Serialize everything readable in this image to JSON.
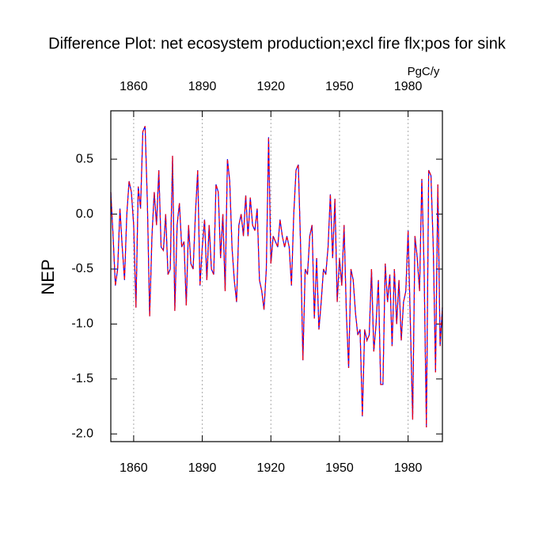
{
  "chart_data": {
    "type": "line",
    "title": "Difference Plot: net ecosystem production;excl fire flx;pos for sink",
    "units_label": "PgC/y",
    "y_label": "NEP",
    "x": [
      1850,
      1851,
      1852,
      1853,
      1854,
      1855,
      1856,
      1857,
      1858,
      1859,
      1860,
      1861,
      1862,
      1863,
      1864,
      1865,
      1866,
      1867,
      1868,
      1869,
      1870,
      1871,
      1872,
      1873,
      1874,
      1875,
      1876,
      1877,
      1878,
      1879,
      1880,
      1881,
      1882,
      1883,
      1884,
      1885,
      1886,
      1887,
      1888,
      1889,
      1890,
      1891,
      1892,
      1893,
      1894,
      1895,
      1896,
      1897,
      1898,
      1899,
      1900,
      1901,
      1902,
      1903,
      1904,
      1905,
      1906,
      1907,
      1908,
      1909,
      1910,
      1911,
      1912,
      1913,
      1914,
      1915,
      1916,
      1917,
      1918,
      1919,
      1920,
      1921,
      1922,
      1923,
      1924,
      1925,
      1926,
      1927,
      1928,
      1929,
      1930,
      1931,
      1932,
      1933,
      1934,
      1935,
      1936,
      1937,
      1938,
      1939,
      1940,
      1941,
      1942,
      1943,
      1944,
      1945,
      1946,
      1947,
      1948,
      1949,
      1950,
      1951,
      1952,
      1953,
      1954,
      1955,
      1956,
      1957,
      1958,
      1959,
      1960,
      1961,
      1962,
      1963,
      1964,
      1965,
      1966,
      1967,
      1968,
      1969,
      1970,
      1971,
      1972,
      1973,
      1974,
      1975,
      1976,
      1977,
      1978,
      1979,
      1980,
      1981,
      1982,
      1983,
      1984,
      1985,
      1986,
      1987,
      1988,
      1989,
      1990,
      1991,
      1992,
      1993,
      1994,
      1995
    ],
    "series": [
      {
        "color": "#0000ff",
        "dash": false,
        "values": [
          0.2,
          -0.2,
          -0.65,
          -0.5,
          0.05,
          -0.3,
          -0.6,
          0.0,
          0.3,
          0.2,
          -0.1,
          -0.85,
          0.25,
          0.05,
          0.75,
          0.8,
          0.1,
          -0.93,
          -0.2,
          0.2,
          -0.1,
          0.4,
          -0.3,
          -0.33,
          0.0,
          -0.55,
          -0.5,
          0.53,
          -0.88,
          -0.1,
          0.1,
          -0.3,
          -0.25,
          -0.83,
          -0.1,
          -0.45,
          -0.5,
          0.0,
          0.4,
          -0.65,
          -0.3,
          -0.05,
          -0.6,
          -0.1,
          -0.5,
          -0.55,
          0.27,
          0.2,
          -0.4,
          0.0,
          -0.7,
          0.5,
          0.3,
          -0.3,
          -0.6,
          -0.8,
          -0.1,
          0.0,
          -0.2,
          0.17,
          -0.2,
          0.15,
          -0.1,
          -0.15,
          0.05,
          -0.6,
          -0.7,
          -0.87,
          -0.5,
          0.7,
          -0.45,
          -0.2,
          -0.25,
          -0.3,
          -0.05,
          -0.2,
          -0.3,
          -0.2,
          -0.3,
          -0.65,
          0.0,
          0.4,
          0.45,
          -0.3,
          -1.33,
          -0.5,
          -0.55,
          -0.2,
          -0.1,
          -0.95,
          -0.4,
          -1.05,
          -0.8,
          -0.5,
          -0.55,
          -0.3,
          0.18,
          -0.4,
          0.14,
          -0.8,
          -0.4,
          -0.65,
          -0.1,
          -0.9,
          -1.4,
          -0.5,
          -0.6,
          -0.9,
          -1.1,
          -1.05,
          -1.84,
          -1.05,
          -1.15,
          -1.1,
          -0.5,
          -1.25,
          -1.0,
          -0.6,
          -1.55,
          -1.55,
          -0.45,
          -0.8,
          -0.55,
          -1.2,
          -0.5,
          -1.0,
          -0.6,
          -1.15,
          -0.8,
          -0.7,
          -0.15,
          -1.0,
          -1.87,
          -0.2,
          -0.4,
          -0.7,
          0.32,
          -0.5,
          -1.94,
          0.4,
          0.35,
          -0.3,
          -1.44,
          0.27,
          -1.2,
          -0.85
        ]
      },
      {
        "color": "#ff0000",
        "dash": true,
        "values": [
          0.2,
          -0.2,
          -0.65,
          -0.5,
          0.05,
          -0.3,
          -0.6,
          0.0,
          0.3,
          0.2,
          -0.1,
          -0.85,
          0.25,
          0.05,
          0.75,
          0.8,
          0.1,
          -0.93,
          -0.2,
          0.2,
          -0.1,
          0.4,
          -0.3,
          -0.33,
          0.0,
          -0.55,
          -0.5,
          0.53,
          -0.88,
          -0.1,
          0.1,
          -0.3,
          -0.25,
          -0.83,
          -0.1,
          -0.45,
          -0.5,
          0.0,
          0.4,
          -0.65,
          -0.3,
          -0.05,
          -0.6,
          -0.1,
          -0.5,
          -0.55,
          0.27,
          0.2,
          -0.4,
          0.0,
          -0.7,
          0.5,
          0.3,
          -0.3,
          -0.6,
          -0.8,
          -0.1,
          0.0,
          -0.2,
          0.17,
          -0.2,
          0.15,
          -0.1,
          -0.15,
          0.05,
          -0.6,
          -0.7,
          -0.87,
          -0.5,
          0.7,
          -0.45,
          -0.2,
          -0.25,
          -0.3,
          -0.05,
          -0.2,
          -0.3,
          -0.2,
          -0.3,
          -0.65,
          0.0,
          0.4,
          0.45,
          -0.3,
          -1.33,
          -0.5,
          -0.55,
          -0.2,
          -0.1,
          -0.95,
          -0.4,
          -1.05,
          -0.8,
          -0.5,
          -0.55,
          -0.3,
          0.18,
          -0.4,
          0.14,
          -0.8,
          -0.4,
          -0.65,
          -0.1,
          -0.9,
          -1.4,
          -0.5,
          -0.6,
          -0.9,
          -1.1,
          -1.05,
          -1.84,
          -1.05,
          -1.15,
          -1.1,
          -0.5,
          -1.25,
          -1.0,
          -0.6,
          -1.55,
          -1.55,
          -0.45,
          -0.8,
          -0.55,
          -1.2,
          -0.5,
          -1.0,
          -0.6,
          -1.15,
          -0.8,
          -0.7,
          -0.15,
          -1.0,
          -1.87,
          -0.2,
          -0.4,
          -0.7,
          0.32,
          -0.5,
          -1.94,
          0.4,
          0.35,
          -0.3,
          -1.44,
          0.27,
          -1.2,
          -0.85
        ]
      }
    ],
    "xlim": [
      1850,
      1995
    ],
    "xticks": [
      1860,
      1890,
      1920,
      1950,
      1980
    ],
    "ylim": [
      -2.07,
      0.94
    ],
    "yticks": [
      0.5,
      {
        "value": 0,
        "label": "0.0"
      },
      -0.5,
      {
        "value": -1,
        "label": "-1.0"
      },
      -1.5,
      {
        "value": -2,
        "label": "-2.0"
      }
    ],
    "xgrid": true,
    "top_tick_color": "#0000ff",
    "bottom_tick_color": "#ff0000"
  }
}
